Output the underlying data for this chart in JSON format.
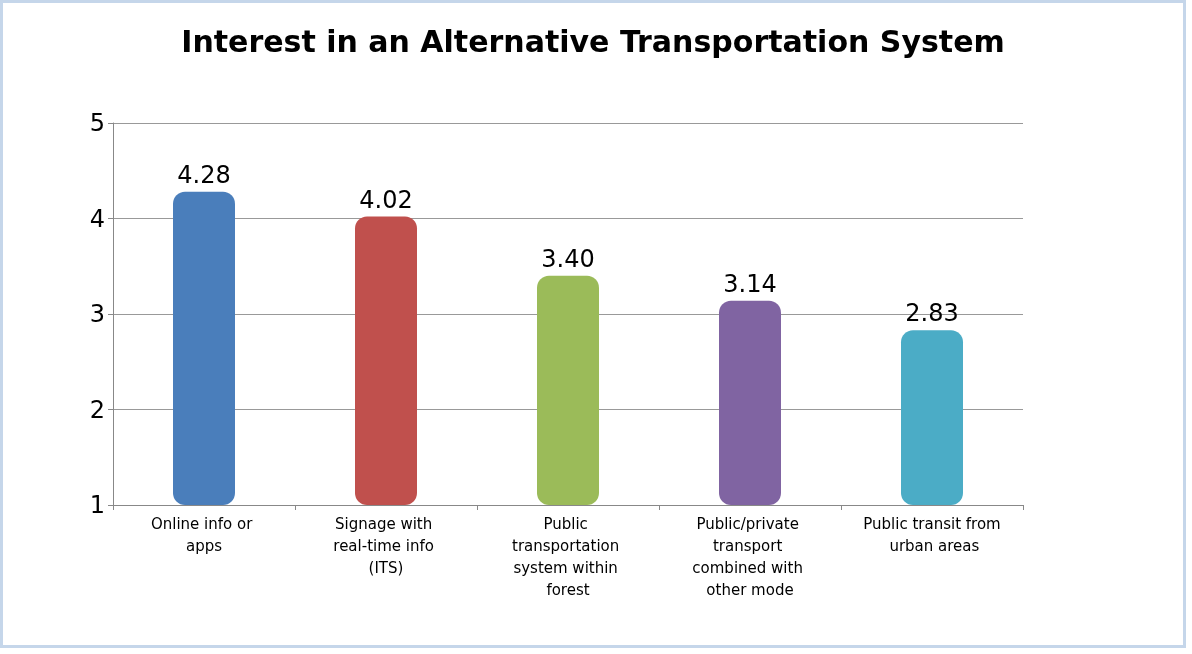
{
  "chart_data": {
    "type": "bar",
    "title": "Interest in an Alternative Transportation System",
    "categories": [
      "Online info or apps",
      "Signage with real-time info (ITS)",
      "Public transportation system within forest",
      "Public/private transport combined with other mode",
      "Public transit from urban areas"
    ],
    "values": [
      4.28,
      4.02,
      3.4,
      3.14,
      2.83
    ],
    "value_labels": [
      "4.28",
      "4.02",
      "3.40",
      "3.14",
      "2.83"
    ],
    "colors": [
      "#4a7ebb",
      "#c0504d",
      "#9bbb59",
      "#8064a2",
      "#4bacc6"
    ],
    "ylim": [
      1,
      5
    ],
    "yticks": [
      1,
      2,
      3,
      4,
      5
    ],
    "grid": "y"
  }
}
